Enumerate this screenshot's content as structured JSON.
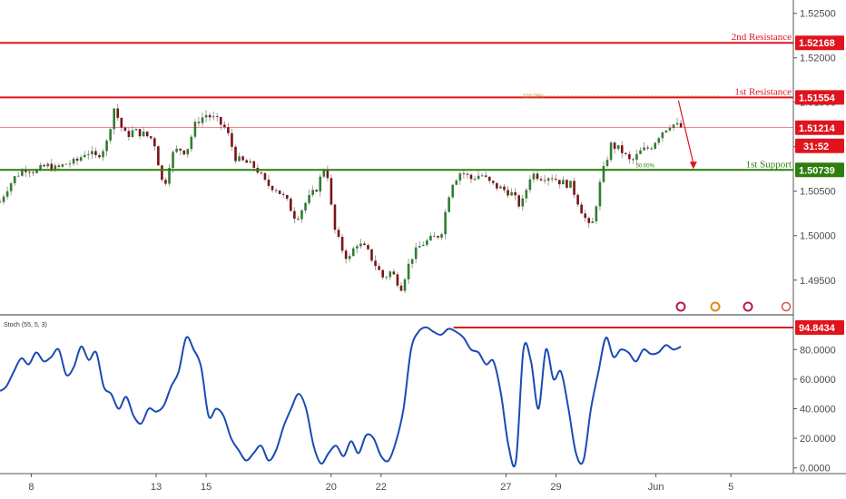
{
  "chart_data": [
    {
      "type": "candlestick",
      "title": "",
      "price_axis": {
        "ticks": [
          "1.52500",
          "1.52000",
          "1.51500",
          "1.51000",
          "1.50500",
          "1.50000",
          "1.49500"
        ],
        "tick_values": [
          1.525,
          1.52,
          1.515,
          1.51,
          1.505,
          1.5,
          1.495
        ],
        "ylim": [
          1.4912,
          1.5265
        ]
      },
      "time_axis": {
        "labels": [
          "8",
          "13",
          "15",
          "20",
          "22",
          "27",
          "29",
          "Jun",
          "5"
        ],
        "label_positions": [
          0.0,
          5.0,
          7.0,
          12.0,
          14.0,
          19.0,
          21.0,
          25.0,
          28.0
        ],
        "xlim": [
          -1.25,
          30.5
        ]
      },
      "levels": [
        {
          "label": "2nd Resistance",
          "value": 1.52168,
          "tag": "1.52168",
          "color": "#e0141e"
        },
        {
          "label": "1st Resistance",
          "value": 1.51554,
          "tag": "1.51554",
          "color": "#e0141e"
        },
        {
          "label": "1st Support",
          "value": 1.50739,
          "tag": "1.50739",
          "color": "#2e7d0f"
        }
      ],
      "current_price": {
        "value": 1.51214,
        "tag": "1.51214",
        "countdown": "31:52",
        "color": "#e0141e"
      },
      "fibonacci": {
        "high_label": "100.00%",
        "high_value": 1.5157,
        "mid_label": "50.00%",
        "mid_value": 1.50745,
        "x_start": 20.6,
        "x_end": 27.6
      },
      "arrow": {
        "x_start": 25.9,
        "y_start": 1.5152,
        "x_end": 26.5,
        "y_end": 1.5075
      },
      "series": [
        {
          "name": "",
          "x": [
            -1.25,
            -1.0,
            -0.6,
            -0.2,
            0.2,
            0.6,
            1.0,
            1.4,
            1.8,
            2.2,
            2.6,
            3.0,
            3.35,
            3.5,
            3.8,
            4.1,
            4.5,
            4.9,
            5.3,
            5.6,
            5.9,
            6.2,
            6.6,
            7.0,
            7.4,
            7.8,
            8.2,
            8.6,
            9.0,
            9.4,
            9.8,
            10.2,
            10.6,
            11.0,
            11.4,
            11.8,
            12.1,
            12.4,
            12.7,
            13.0,
            13.4,
            13.8,
            14.1,
            14.4,
            14.8,
            15.2,
            15.6,
            16.0,
            16.4,
            16.8,
            17.2,
            17.6,
            18.0,
            18.4,
            18.8,
            19.2,
            19.6,
            20.0,
            20.4,
            20.8,
            21.2,
            21.6,
            22.0,
            22.4,
            22.8,
            23.2,
            23.6,
            24.0,
            24.4,
            24.8,
            25.2,
            25.6,
            26.0
          ],
          "y": [
            1.5038,
            1.5052,
            1.5068,
            1.5076,
            1.5072,
            1.5079,
            1.5075,
            1.5081,
            1.5083,
            1.5095,
            1.5088,
            1.5102,
            1.5148,
            1.5128,
            1.5112,
            1.5118,
            1.5114,
            1.5108,
            1.5052,
            1.509,
            1.5098,
            1.5094,
            1.5128,
            1.5136,
            1.513,
            1.512,
            1.5086,
            1.5082,
            1.5076,
            1.5058,
            1.5053,
            1.504,
            1.5019,
            1.5038,
            1.5052,
            1.5082,
            1.501,
            1.4987,
            1.4972,
            1.4992,
            1.4985,
            1.4966,
            1.4952,
            1.496,
            1.4942,
            1.4975,
            1.499,
            1.4996,
            1.5002,
            1.5058,
            1.5072,
            1.5064,
            1.5069,
            1.5058,
            1.5053,
            1.5048,
            1.5032,
            1.507,
            1.5066,
            1.5067,
            1.506,
            1.5057,
            1.503,
            1.5005,
            1.5064,
            1.5102,
            1.5096,
            1.5082,
            1.5095,
            1.51,
            1.5116,
            1.5126,
            1.5122
          ]
        }
      ]
    },
    {
      "type": "line",
      "title": "Stoch (55, 5, 3)",
      "y_ticks": [
        "80.0000",
        "60.0000",
        "40.0000",
        "20.0000",
        "0.0000"
      ],
      "y_tick_values": [
        80,
        60,
        40,
        20,
        0
      ],
      "ylim": [
        -2,
        101
      ],
      "level": {
        "value": 94.8434,
        "tag": "94.8434",
        "x_start": 16.9,
        "color": "#e0141e"
      },
      "series": [
        {
          "name": "",
          "x": [
            -1.25,
            -1.0,
            -0.7,
            -0.4,
            -0.1,
            0.2,
            0.5,
            0.8,
            1.1,
            1.4,
            1.7,
            2.0,
            2.3,
            2.6,
            2.9,
            3.2,
            3.5,
            3.8,
            4.1,
            4.4,
            4.7,
            5.0,
            5.3,
            5.6,
            5.9,
            6.2,
            6.5,
            6.8,
            7.1,
            7.4,
            7.7,
            8.0,
            8.3,
            8.6,
            8.9,
            9.2,
            9.5,
            9.8,
            10.1,
            10.4,
            10.7,
            11.0,
            11.3,
            11.6,
            11.9,
            12.2,
            12.5,
            12.8,
            13.1,
            13.4,
            13.7,
            14.0,
            14.3,
            14.6,
            14.9,
            15.2,
            15.5,
            15.8,
            16.1,
            16.4,
            16.7,
            17.0,
            17.3,
            17.6,
            17.9,
            18.2,
            18.5,
            18.8,
            19.1,
            19.4,
            19.7,
            20.0,
            20.3,
            20.6,
            20.9,
            21.2,
            21.5,
            21.8,
            22.1,
            22.4,
            22.7,
            23.0,
            23.3,
            23.6,
            23.9,
            24.2,
            24.5,
            24.8,
            25.1,
            25.4,
            25.7,
            26.0
          ],
          "y": [
            52,
            55,
            65,
            74,
            70,
            78,
            72,
            75,
            80,
            63,
            68,
            82,
            73,
            78,
            55,
            50,
            40,
            48,
            35,
            30,
            40,
            38,
            42,
            55,
            65,
            88,
            80,
            68,
            35,
            40,
            35,
            20,
            12,
            5,
            10,
            15,
            5,
            12,
            28,
            40,
            50,
            40,
            15,
            3,
            10,
            15,
            8,
            18,
            10,
            22,
            20,
            8,
            5,
            18,
            40,
            80,
            92,
            95,
            92,
            90,
            94,
            92,
            88,
            80,
            78,
            70,
            72,
            50,
            15,
            5,
            80,
            72,
            40,
            80,
            60,
            65,
            40,
            10,
            5,
            40,
            65,
            88,
            75,
            80,
            78,
            72,
            80,
            77,
            78,
            83,
            80,
            82
          ]
        }
      ]
    }
  ]
}
